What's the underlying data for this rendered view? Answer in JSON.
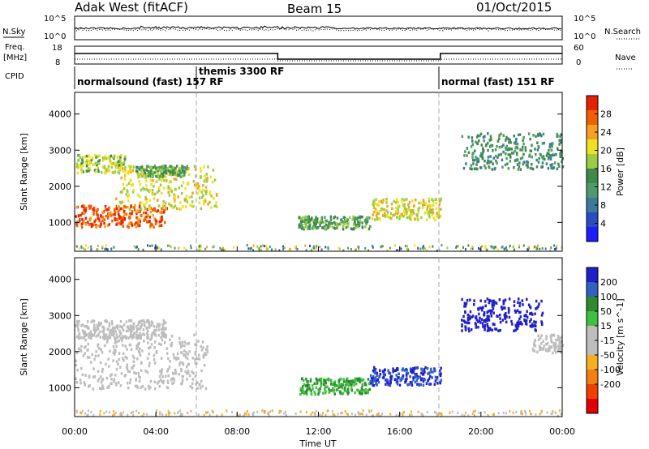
{
  "header": {
    "station": "Adak West (fitACF)",
    "beam": "Beam 15",
    "date": "01/Oct/2015"
  },
  "panels": {
    "nsky_label": "N.Sky",
    "nsearch_label": "N.Search",
    "freq_label_line1": "Freq.",
    "freq_label_line2": "[MHz]",
    "nave_label": "Nave",
    "cpid_label": "CPID",
    "sky_ticks": [
      "10^5",
      "10^0"
    ],
    "freq_ticks": [
      "18",
      "8"
    ],
    "nave_ticks": [
      "60",
      "0"
    ]
  },
  "cpid_segments": [
    {
      "label": "normalsound (fast) 157 RF",
      "start": 0,
      "end": 6
    },
    {
      "label": "themis 3300 RF",
      "start": 6,
      "end": 18
    },
    {
      "label": "normal (fast) 151 RF",
      "start": 18,
      "end": 24
    }
  ],
  "colors": {
    "power_scale": [
      "#1c1cff",
      "#2a4cc0",
      "#3a7a9a",
      "#4f9a6a",
      "#3f8a4a",
      "#9ccc44",
      "#f0e020",
      "#f5a020",
      "#f06000",
      "#e82000"
    ],
    "velocity_scale": [
      "#2020c8",
      "#3060c0",
      "#2f8a2f",
      "#40c040",
      "#bdbdbd",
      "#bdbdbd",
      "#f5b020",
      "#f08010",
      "#f04000",
      "#e00000"
    ]
  },
  "chart_data": [
    {
      "type": "heatmap",
      "name": "Power",
      "ylabel": "Slant Range [km]",
      "y_ticks": [
        1000,
        2000,
        3000,
        4000
      ],
      "ylim": [
        200,
        4600
      ],
      "xlim": [
        0,
        24
      ],
      "colorbar_label": "Power [dB]",
      "colorbar_ticks": [
        4,
        8,
        12,
        16,
        20,
        24,
        28
      ],
      "colorbar_range": [
        0,
        32
      ],
      "features": [
        {
          "t_start": 0.0,
          "t_end": 4.5,
          "range_start": 900,
          "range_end": 1500,
          "value": 28
        },
        {
          "t_start": 2.0,
          "t_end": 7.0,
          "range_start": 1400,
          "range_end": 2600,
          "value": 20
        },
        {
          "t_start": 0.0,
          "t_end": 2.5,
          "range_start": 2400,
          "range_end": 2900,
          "value": 18
        },
        {
          "t_start": 3.0,
          "t_end": 5.5,
          "range_start": 2300,
          "range_end": 2600,
          "value": 14
        },
        {
          "t_start": 11.0,
          "t_end": 14.5,
          "range_start": 850,
          "range_end": 1200,
          "value": 14
        },
        {
          "t_start": 14.5,
          "t_end": 18.0,
          "range_start": 1100,
          "range_end": 1700,
          "value": 20
        },
        {
          "t_start": 19.0,
          "t_end": 24.0,
          "range_start": 2500,
          "range_end": 3500,
          "value": 12
        }
      ]
    },
    {
      "type": "heatmap",
      "name": "Velocity",
      "ylabel": "Slant Range [km]",
      "y_ticks": [
        1000,
        2000,
        3000,
        4000
      ],
      "ylim": [
        200,
        4600
      ],
      "xlim": [
        0,
        24
      ],
      "colorbar_label": "Velocity [m s^-1]",
      "colorbar_ticks": [
        200,
        100,
        50,
        15,
        -15,
        -50,
        -100,
        -200
      ],
      "features": [
        {
          "t_start": 0.0,
          "t_end": 6.5,
          "range_start": 1000,
          "range_end": 2500,
          "value": 0
        },
        {
          "t_start": 0.0,
          "t_end": 4.5,
          "range_start": 2400,
          "range_end": 2900,
          "value": 0
        },
        {
          "t_start": 11.0,
          "t_end": 14.5,
          "range_start": 850,
          "range_end": 1300,
          "value": 50
        },
        {
          "t_start": 14.5,
          "t_end": 18.0,
          "range_start": 1100,
          "range_end": 1600,
          "value": 200
        },
        {
          "t_start": 19.0,
          "t_end": 23.0,
          "range_start": 2600,
          "range_end": 3500,
          "value": 250
        },
        {
          "t_start": 22.5,
          "t_end": 24.0,
          "range_start": 2000,
          "range_end": 2500,
          "value": 0
        }
      ]
    }
  ],
  "x_axis": {
    "label": "Time UT",
    "ticks": [
      "00:00",
      "04:00",
      "08:00",
      "12:00",
      "16:00",
      "20:00",
      "00:00"
    ]
  }
}
